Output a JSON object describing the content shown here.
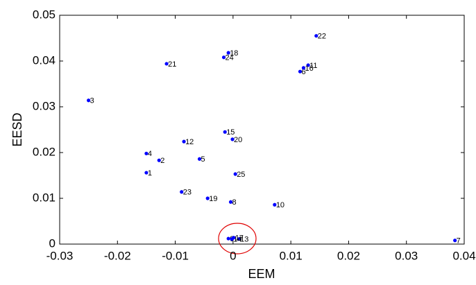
{
  "chart_data": {
    "type": "scatter",
    "xlabel": "EEM",
    "ylabel": "EESD",
    "series": [
      {
        "color": "#0000ff",
        "labels": [
          "1",
          "2",
          "3",
          "4",
          "5",
          "6",
          "7",
          "8",
          "9",
          "10",
          "11",
          "12",
          "13",
          "14",
          "15",
          "16",
          "17",
          "18",
          "19",
          "20",
          "21",
          "22",
          "23",
          "24",
          "25"
        ],
        "x": [
          -0.015,
          -0.0128,
          -0.025,
          -0.015,
          -0.0058,
          0.0116,
          0.0384,
          -0.0004,
          -0.0008,
          0.0072,
          0.013,
          -0.0085,
          0.001,
          -0.0002,
          -0.0014,
          0.0122,
          0.0001,
          -0.0008,
          -0.0044,
          -0.0001,
          -0.0115,
          0.0144,
          -0.0089,
          -0.0016,
          0.0004
        ],
        "y": [
          0.0156,
          0.0183,
          0.0314,
          0.0198,
          0.0186,
          0.0377,
          0.0008,
          0.0092,
          0.0012,
          0.0086,
          0.0391,
          0.0224,
          0.0011,
          0.0011,
          0.0245,
          0.0385,
          0.0014,
          0.0418,
          0.01,
          0.0229,
          0.0394,
          0.0455,
          0.0114,
          0.0408,
          0.0153
        ]
      }
    ],
    "xlim": [
      -0.03,
      0.04
    ],
    "xticks": [
      -0.03,
      -0.02,
      -0.01,
      0,
      0.01,
      0.02,
      0.03,
      0.04
    ],
    "ylim": [
      0,
      0.05
    ],
    "yticks": [
      0,
      0.01,
      0.02,
      0.03,
      0.04,
      0.05
    ]
  }
}
